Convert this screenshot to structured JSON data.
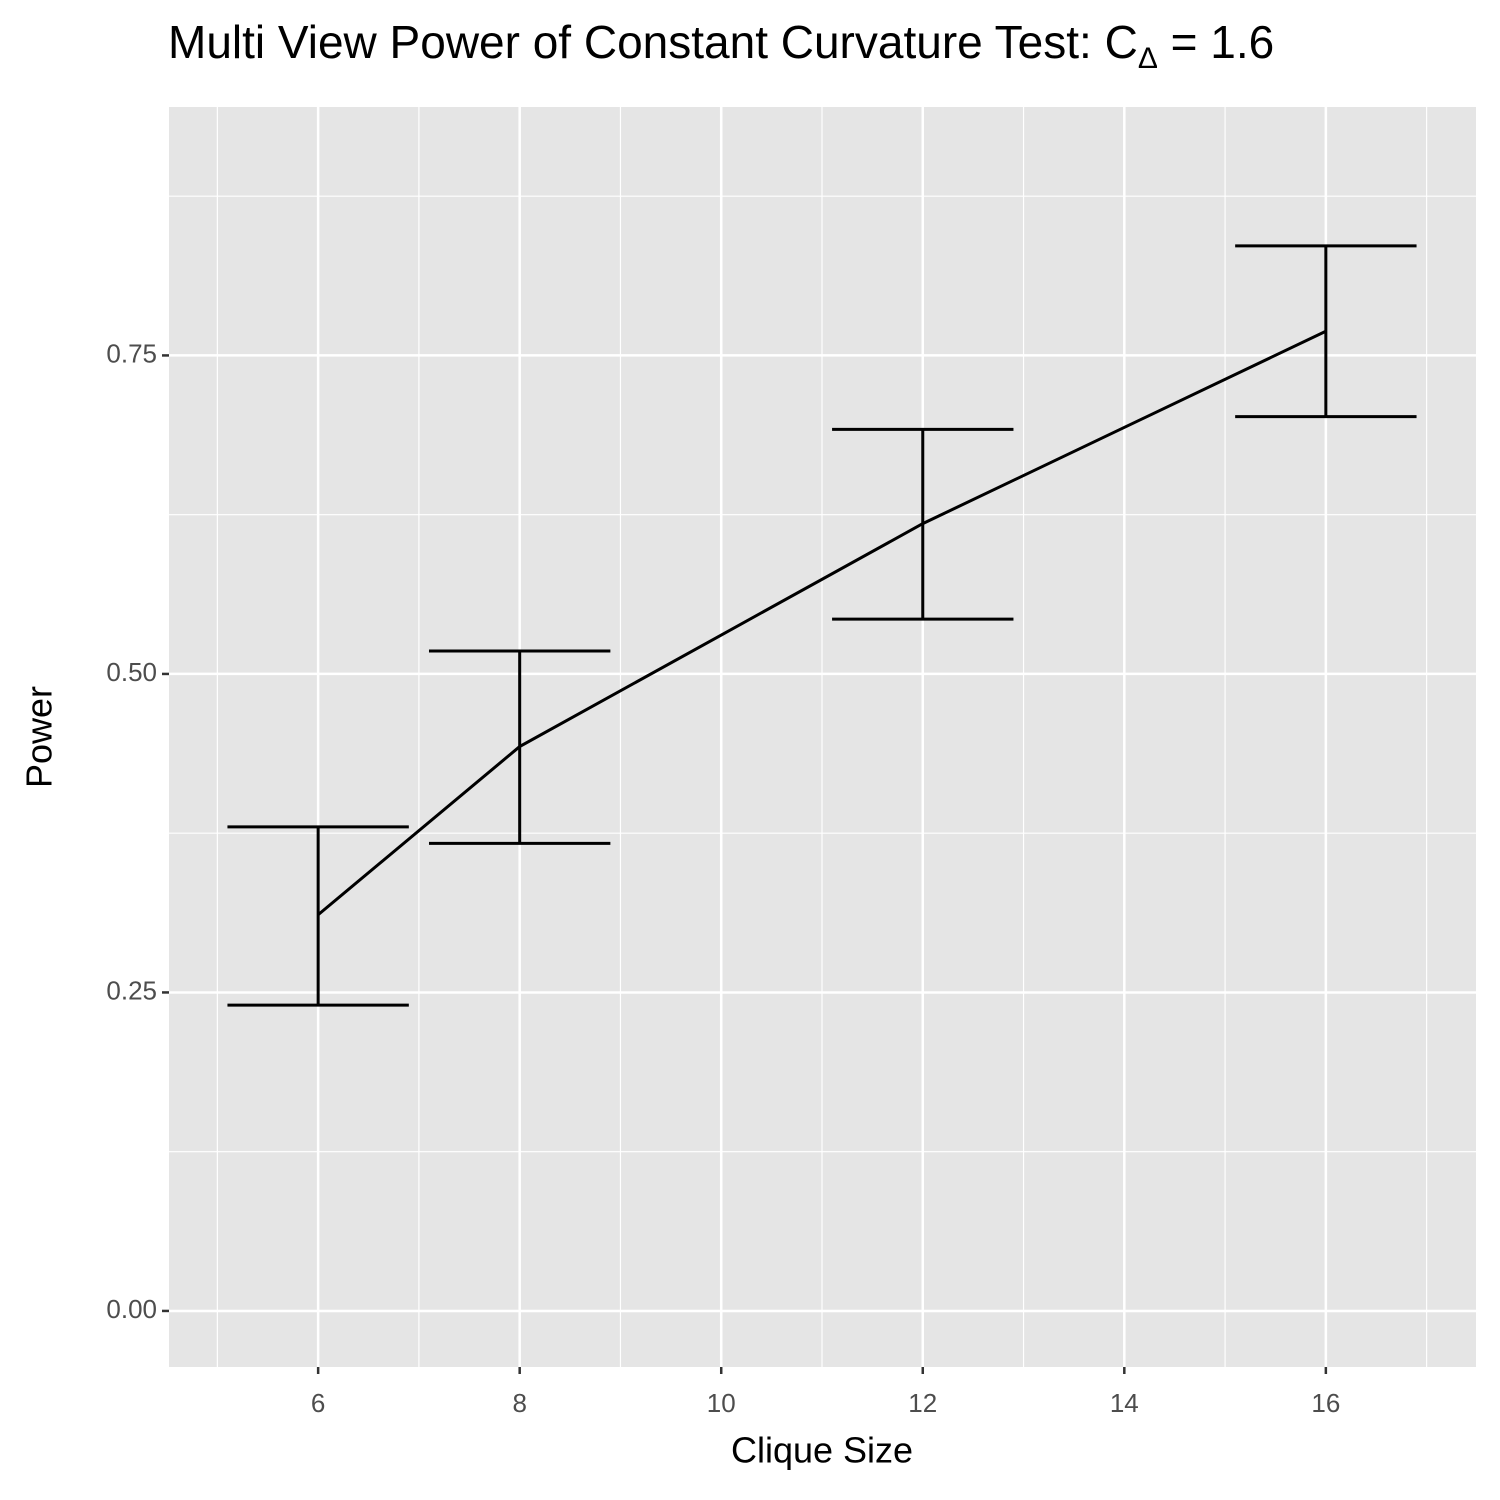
{
  "chart_data": {
    "type": "line_errorbar",
    "title": "Multi View Power of Constant Curvature Test: C",
    "title_subscript": "Δ",
    "title_tail": " = 1.6",
    "x_label": "Clique Size",
    "y_label": "Power",
    "x": [
      6,
      8,
      12,
      16
    ],
    "values": [
      0.311,
      0.443,
      0.618,
      0.769
    ],
    "lower": [
      0.24,
      0.367,
      0.543,
      0.702
    ],
    "upper": [
      0.38,
      0.518,
      0.692,
      0.836
    ],
    "color": "#000000",
    "xlim": [
      4.52,
      17.49
    ],
    "ylim": [
      -0.044,
      0.945
    ],
    "xticks": [
      6,
      8,
      10,
      12,
      14,
      16
    ],
    "yticks": [
      {
        "value": 0,
        "label": "0.00"
      },
      {
        "value": 0.25,
        "label": "0.25"
      },
      {
        "value": 0.5,
        "label": "0.50"
      },
      {
        "value": 0.75,
        "label": "0.75"
      }
    ],
    "grid": true
  }
}
